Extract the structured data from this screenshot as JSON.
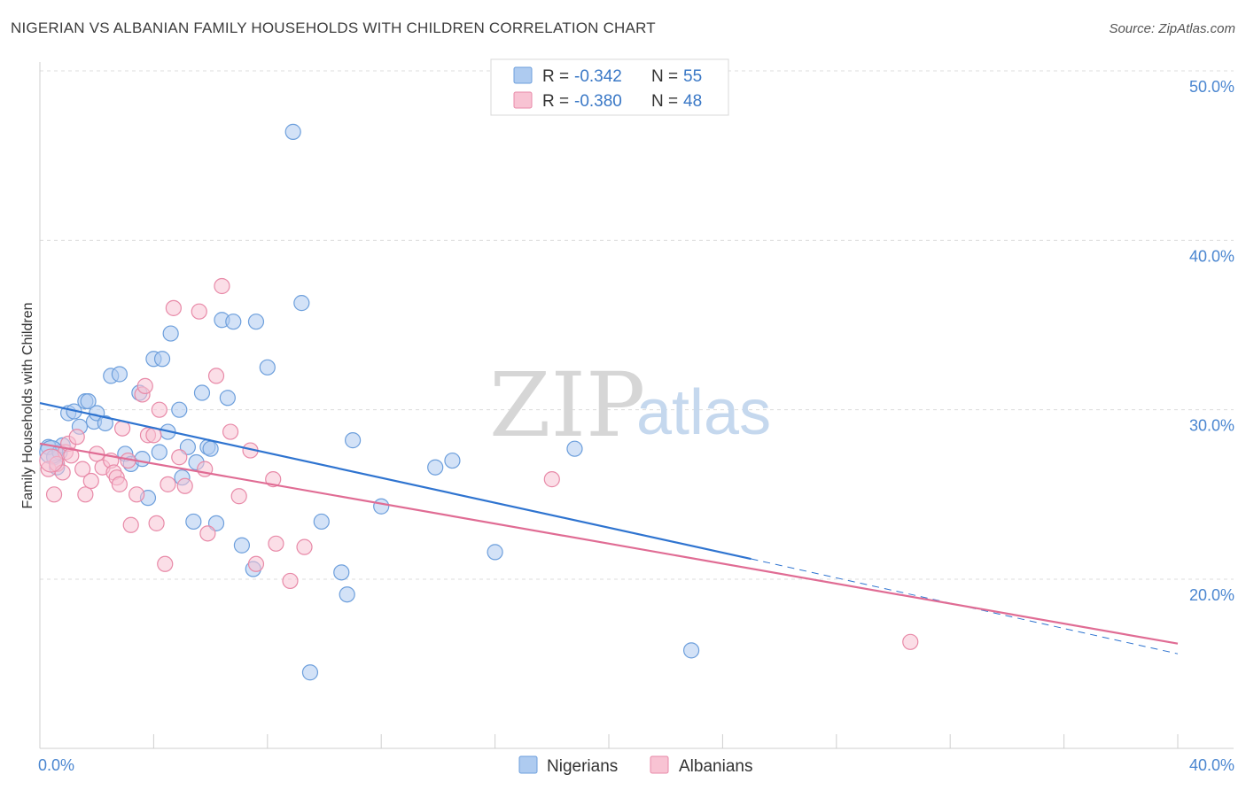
{
  "title": "NIGERIAN VS ALBANIAN FAMILY HOUSEHOLDS WITH CHILDREN CORRELATION CHART",
  "source": "Source: ZipAtlas.com",
  "watermark": {
    "zip": "ZIP",
    "atlas": "atlas"
  },
  "legend": {
    "rows": [
      {
        "r_label": "R =",
        "r_value": "-0.342",
        "n_label": "N =",
        "n_value": "55"
      },
      {
        "r_label": "R =",
        "r_value": "-0.380",
        "n_label": "N =",
        "n_value": "48"
      }
    ]
  },
  "bottom_legend": [
    "Nigerians",
    "Albanians"
  ],
  "colors": {
    "nigerians_fill": "#aecbf0",
    "nigerians_stroke": "#6d9fdc",
    "nigerians_line": "#2f74d0",
    "albanians_fill": "#f8c3d3",
    "albanians_stroke": "#e88aa8",
    "albanians_line": "#e06c94",
    "grid": "#dcdcdc",
    "tick_label": "#4a86d0"
  },
  "chart_data": {
    "type": "scatter",
    "title": "NIGERIAN VS ALBANIAN FAMILY HOUSEHOLDS WITH CHILDREN CORRELATION CHART",
    "xlabel": "",
    "ylabel": "Family Households with Children",
    "xlim": [
      0,
      40
    ],
    "ylim": [
      10,
      52
    ],
    "x_tick_labels": [
      "0.0%",
      "40.0%"
    ],
    "y_ticks": [
      20,
      30,
      40,
      50
    ],
    "y_tick_labels": [
      "20.0%",
      "30.0%",
      "40.0%",
      "50.0%"
    ],
    "grid": true,
    "legend_position": "top-center",
    "series": [
      {
        "name": "Nigerians",
        "r": -0.342,
        "n": 55,
        "trend": {
          "x0": 0,
          "y0": 30.4,
          "x1": 25,
          "y1": 21.2,
          "dash_to_x": 40,
          "dash_to_y": 15.6
        },
        "points": [
          [
            0.3,
            27.8
          ],
          [
            0.5,
            27.2
          ],
          [
            0.6,
            26.6
          ],
          [
            0.7,
            27.5
          ],
          [
            0.8,
            27.9
          ],
          [
            1.0,
            29.8
          ],
          [
            1.2,
            29.9
          ],
          [
            1.4,
            29.0
          ],
          [
            1.6,
            30.5
          ],
          [
            1.7,
            30.5
          ],
          [
            1.9,
            29.3
          ],
          [
            2.0,
            29.8
          ],
          [
            2.3,
            29.2
          ],
          [
            2.5,
            32.0
          ],
          [
            2.8,
            32.1
          ],
          [
            3.0,
            27.4
          ],
          [
            3.2,
            26.8
          ],
          [
            3.5,
            31.0
          ],
          [
            3.6,
            27.1
          ],
          [
            3.8,
            24.8
          ],
          [
            4.0,
            33.0
          ],
          [
            4.2,
            27.5
          ],
          [
            4.3,
            33.0
          ],
          [
            4.5,
            28.7
          ],
          [
            4.6,
            34.5
          ],
          [
            4.9,
            30.0
          ],
          [
            5.0,
            26.0
          ],
          [
            5.2,
            27.8
          ],
          [
            5.4,
            23.4
          ],
          [
            5.5,
            26.9
          ],
          [
            5.7,
            31.0
          ],
          [
            5.9,
            27.8
          ],
          [
            6.0,
            27.7
          ],
          [
            6.2,
            23.3
          ],
          [
            6.4,
            35.3
          ],
          [
            6.6,
            30.7
          ],
          [
            6.8,
            35.2
          ],
          [
            7.1,
            22.0
          ],
          [
            7.5,
            20.6
          ],
          [
            7.6,
            35.2
          ],
          [
            8.0,
            32.5
          ],
          [
            8.9,
            46.4
          ],
          [
            9.2,
            36.3
          ],
          [
            9.5,
            14.5
          ],
          [
            9.9,
            23.4
          ],
          [
            10.6,
            20.4
          ],
          [
            10.8,
            19.1
          ],
          [
            11.0,
            28.2
          ],
          [
            12.0,
            24.3
          ],
          [
            13.9,
            26.6
          ],
          [
            14.5,
            27.0
          ],
          [
            16.0,
            21.6
          ],
          [
            18.8,
            27.7
          ],
          [
            22.9,
            15.8
          ],
          [
            0.4,
            27.5
          ]
        ]
      },
      {
        "name": "Albanians",
        "r": -0.38,
        "n": 48,
        "trend": {
          "x0": 0,
          "y0": 28.0,
          "x1": 40,
          "y1": 16.2
        },
        "points": [
          [
            0.3,
            26.5
          ],
          [
            0.5,
            25.0
          ],
          [
            0.6,
            26.8
          ],
          [
            0.8,
            26.3
          ],
          [
            0.9,
            27.5
          ],
          [
            1.0,
            28.0
          ],
          [
            1.1,
            27.3
          ],
          [
            1.3,
            28.4
          ],
          [
            1.5,
            26.5
          ],
          [
            1.6,
            25.0
          ],
          [
            1.8,
            25.8
          ],
          [
            2.0,
            27.4
          ],
          [
            2.2,
            26.6
          ],
          [
            2.5,
            27.0
          ],
          [
            2.6,
            26.3
          ],
          [
            2.7,
            26.0
          ],
          [
            2.8,
            25.6
          ],
          [
            2.9,
            28.9
          ],
          [
            3.1,
            27.0
          ],
          [
            3.2,
            23.2
          ],
          [
            3.4,
            25.0
          ],
          [
            3.6,
            30.9
          ],
          [
            3.7,
            31.4
          ],
          [
            3.8,
            28.5
          ],
          [
            4.0,
            28.5
          ],
          [
            4.1,
            23.3
          ],
          [
            4.2,
            30.0
          ],
          [
            4.4,
            20.9
          ],
          [
            4.5,
            25.6
          ],
          [
            4.7,
            36.0
          ],
          [
            4.9,
            27.2
          ],
          [
            5.1,
            25.5
          ],
          [
            5.6,
            35.8
          ],
          [
            5.8,
            26.5
          ],
          [
            5.9,
            22.7
          ],
          [
            6.2,
            32.0
          ],
          [
            6.4,
            37.3
          ],
          [
            6.7,
            28.7
          ],
          [
            7.0,
            24.9
          ],
          [
            7.4,
            27.6
          ],
          [
            7.6,
            20.9
          ],
          [
            8.2,
            25.9
          ],
          [
            8.3,
            22.1
          ],
          [
            8.8,
            19.9
          ],
          [
            9.3,
            21.9
          ],
          [
            18.0,
            25.9
          ],
          [
            30.6,
            16.3
          ],
          [
            0.4,
            27.0
          ]
        ]
      }
    ]
  }
}
